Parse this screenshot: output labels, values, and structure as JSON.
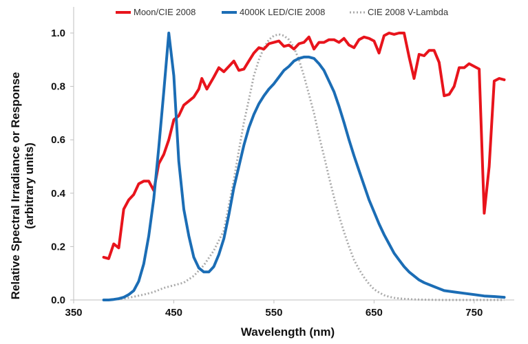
{
  "chart_data": {
    "type": "line",
    "title": "",
    "xlabel": "Wavelength (nm)",
    "ylabel_lines": [
      "Relative Spectral Irradiance or Response",
      "(arbitrary units)"
    ],
    "xlim": [
      350,
      790
    ],
    "ylim": [
      0,
      1.0
    ],
    "x_ticks": [
      350,
      450,
      550,
      650,
      750
    ],
    "x_tick_labels": [
      "350",
      "450",
      "550",
      "650",
      "750"
    ],
    "y_ticks": [
      0,
      0.2,
      0.4,
      0.6,
      0.8,
      1.0
    ],
    "y_tick_labels": [
      "0.0",
      "0.2",
      "0.4",
      "0.6",
      "0.8",
      "1.0"
    ],
    "grid": false,
    "legend_position": "top",
    "series": [
      {
        "name": "Moon/CIE 2008",
        "color": "#e8141c",
        "style": "solid",
        "points": [
          [
            380,
            0.16
          ],
          [
            385,
            0.155
          ],
          [
            390,
            0.21
          ],
          [
            395,
            0.195
          ],
          [
            400,
            0.34
          ],
          [
            405,
            0.375
          ],
          [
            410,
            0.395
          ],
          [
            415,
            0.435
          ],
          [
            420,
            0.445
          ],
          [
            425,
            0.445
          ],
          [
            430,
            0.41
          ],
          [
            435,
            0.51
          ],
          [
            440,
            0.545
          ],
          [
            445,
            0.6
          ],
          [
            450,
            0.675
          ],
          [
            455,
            0.69
          ],
          [
            460,
            0.73
          ],
          [
            465,
            0.745
          ],
          [
            470,
            0.76
          ],
          [
            475,
            0.79
          ],
          [
            478,
            0.83
          ],
          [
            483,
            0.79
          ],
          [
            490,
            0.835
          ],
          [
            495,
            0.87
          ],
          [
            500,
            0.855
          ],
          [
            505,
            0.875
          ],
          [
            510,
            0.895
          ],
          [
            515,
            0.86
          ],
          [
            520,
            0.865
          ],
          [
            525,
            0.895
          ],
          [
            530,
            0.925
          ],
          [
            535,
            0.945
          ],
          [
            540,
            0.94
          ],
          [
            545,
            0.96
          ],
          [
            550,
            0.965
          ],
          [
            555,
            0.97
          ],
          [
            560,
            0.95
          ],
          [
            565,
            0.955
          ],
          [
            570,
            0.94
          ],
          [
            575,
            0.96
          ],
          [
            580,
            0.965
          ],
          [
            585,
            0.985
          ],
          [
            590,
            0.94
          ],
          [
            595,
            0.965
          ],
          [
            600,
            0.965
          ],
          [
            605,
            0.975
          ],
          [
            610,
            0.975
          ],
          [
            615,
            0.965
          ],
          [
            620,
            0.98
          ],
          [
            625,
            0.955
          ],
          [
            630,
            0.945
          ],
          [
            635,
            0.975
          ],
          [
            640,
            0.985
          ],
          [
            645,
            0.98
          ],
          [
            650,
            0.97
          ],
          [
            655,
            0.925
          ],
          [
            660,
            0.99
          ],
          [
            665,
            1.0
          ],
          [
            670,
            0.995
          ],
          [
            675,
            1.0
          ],
          [
            680,
            1.0
          ],
          [
            685,
            0.91
          ],
          [
            690,
            0.83
          ],
          [
            695,
            0.92
          ],
          [
            700,
            0.915
          ],
          [
            705,
            0.935
          ],
          [
            710,
            0.935
          ],
          [
            715,
            0.89
          ],
          [
            720,
            0.765
          ],
          [
            725,
            0.77
          ],
          [
            730,
            0.8
          ],
          [
            735,
            0.87
          ],
          [
            740,
            0.87
          ],
          [
            745,
            0.885
          ],
          [
            750,
            0.875
          ],
          [
            755,
            0.865
          ],
          [
            760,
            0.325
          ],
          [
            765,
            0.5
          ],
          [
            770,
            0.82
          ],
          [
            775,
            0.83
          ],
          [
            780,
            0.825
          ]
        ]
      },
      {
        "name": "4000K LED/CIE 2008",
        "color": "#1b6db5",
        "style": "solid",
        "points": [
          [
            380,
            0.0
          ],
          [
            385,
            0.0
          ],
          [
            390,
            0.002
          ],
          [
            395,
            0.005
          ],
          [
            400,
            0.01
          ],
          [
            405,
            0.02
          ],
          [
            410,
            0.035
          ],
          [
            415,
            0.07
          ],
          [
            420,
            0.135
          ],
          [
            425,
            0.24
          ],
          [
            430,
            0.38
          ],
          [
            435,
            0.57
          ],
          [
            440,
            0.78
          ],
          [
            445,
            1.0
          ],
          [
            450,
            0.84
          ],
          [
            455,
            0.52
          ],
          [
            460,
            0.34
          ],
          [
            465,
            0.24
          ],
          [
            470,
            0.16
          ],
          [
            475,
            0.12
          ],
          [
            480,
            0.105
          ],
          [
            485,
            0.105
          ],
          [
            490,
            0.125
          ],
          [
            495,
            0.17
          ],
          [
            500,
            0.23
          ],
          [
            505,
            0.32
          ],
          [
            510,
            0.42
          ],
          [
            515,
            0.5
          ],
          [
            520,
            0.58
          ],
          [
            525,
            0.645
          ],
          [
            530,
            0.695
          ],
          [
            535,
            0.735
          ],
          [
            540,
            0.765
          ],
          [
            545,
            0.79
          ],
          [
            550,
            0.81
          ],
          [
            555,
            0.835
          ],
          [
            560,
            0.86
          ],
          [
            565,
            0.875
          ],
          [
            570,
            0.895
          ],
          [
            575,
            0.905
          ],
          [
            580,
            0.91
          ],
          [
            585,
            0.91
          ],
          [
            590,
            0.905
          ],
          [
            595,
            0.885
          ],
          [
            600,
            0.86
          ],
          [
            605,
            0.82
          ],
          [
            610,
            0.78
          ],
          [
            615,
            0.725
          ],
          [
            620,
            0.665
          ],
          [
            625,
            0.6
          ],
          [
            630,
            0.54
          ],
          [
            635,
            0.485
          ],
          [
            640,
            0.43
          ],
          [
            645,
            0.375
          ],
          [
            650,
            0.33
          ],
          [
            655,
            0.285
          ],
          [
            660,
            0.245
          ],
          [
            665,
            0.21
          ],
          [
            670,
            0.175
          ],
          [
            675,
            0.15
          ],
          [
            680,
            0.125
          ],
          [
            685,
            0.105
          ],
          [
            690,
            0.09
          ],
          [
            695,
            0.075
          ],
          [
            700,
            0.065
          ],
          [
            710,
            0.05
          ],
          [
            720,
            0.035
          ],
          [
            730,
            0.03
          ],
          [
            740,
            0.025
          ],
          [
            750,
            0.02
          ],
          [
            760,
            0.015
          ],
          [
            770,
            0.013
          ],
          [
            780,
            0.01
          ]
        ]
      },
      {
        "name": "CIE 2008 V-Lambda",
        "color": "#aaaaaa",
        "style": "dotted",
        "points": [
          [
            380,
            0.0
          ],
          [
            390,
            0.002
          ],
          [
            400,
            0.005
          ],
          [
            410,
            0.012
          ],
          [
            420,
            0.02
          ],
          [
            430,
            0.03
          ],
          [
            440,
            0.045
          ],
          [
            450,
            0.055
          ],
          [
            460,
            0.065
          ],
          [
            470,
            0.09
          ],
          [
            480,
            0.13
          ],
          [
            490,
            0.185
          ],
          [
            500,
            0.26
          ],
          [
            510,
            0.45
          ],
          [
            515,
            0.56
          ],
          [
            520,
            0.665
          ],
          [
            525,
            0.75
          ],
          [
            530,
            0.84
          ],
          [
            535,
            0.9
          ],
          [
            540,
            0.945
          ],
          [
            545,
            0.975
          ],
          [
            550,
            0.99
          ],
          [
            555,
            0.995
          ],
          [
            560,
            0.99
          ],
          [
            565,
            0.975
          ],
          [
            570,
            0.945
          ],
          [
            575,
            0.9
          ],
          [
            580,
            0.84
          ],
          [
            585,
            0.77
          ],
          [
            590,
            0.7
          ],
          [
            595,
            0.615
          ],
          [
            600,
            0.54
          ],
          [
            605,
            0.46
          ],
          [
            610,
            0.385
          ],
          [
            615,
            0.315
          ],
          [
            620,
            0.255
          ],
          [
            625,
            0.2
          ],
          [
            630,
            0.15
          ],
          [
            635,
            0.115
          ],
          [
            640,
            0.085
          ],
          [
            645,
            0.06
          ],
          [
            650,
            0.04
          ],
          [
            655,
            0.028
          ],
          [
            660,
            0.018
          ],
          [
            665,
            0.012
          ],
          [
            670,
            0.008
          ],
          [
            680,
            0.004
          ],
          [
            690,
            0.002
          ],
          [
            700,
            0.001
          ],
          [
            720,
            0.0
          ],
          [
            740,
            0.0
          ],
          [
            760,
            0.0
          ],
          [
            780,
            0.0
          ]
        ]
      }
    ]
  }
}
